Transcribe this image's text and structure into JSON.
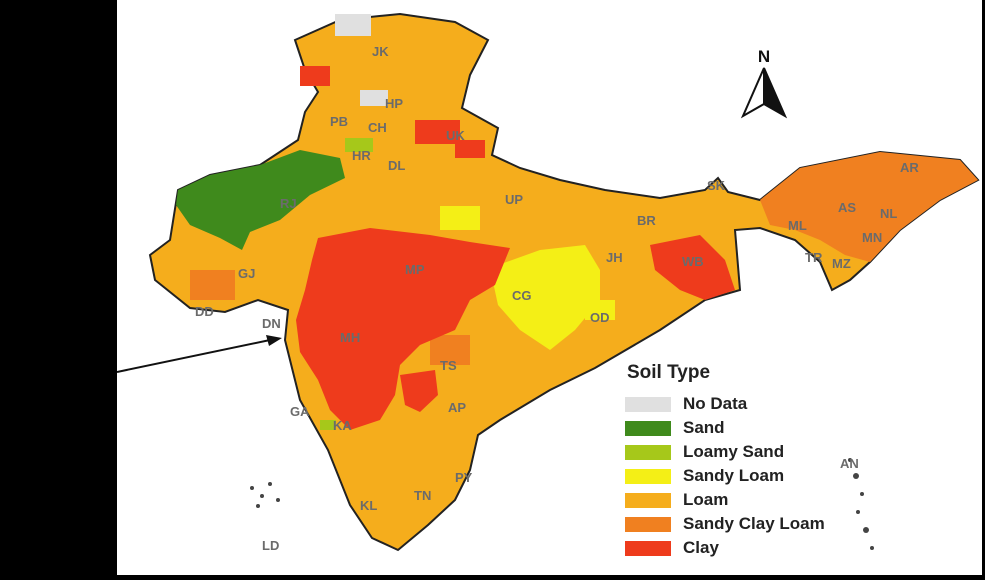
{
  "legend": {
    "title": "Soil Type",
    "items": [
      {
        "label": "No Data",
        "color": "#e0e0e0"
      },
      {
        "label": "Sand",
        "color": "#3f8a1c"
      },
      {
        "label": "Loamy Sand",
        "color": "#a6c81a"
      },
      {
        "label": "Sandy Loam",
        "color": "#f4ef16"
      },
      {
        "label": "Loam",
        "color": "#f5ad1c"
      },
      {
        "label": "Sandy Clay Loam",
        "color": "#f08020"
      },
      {
        "label": "Clay",
        "color": "#ee3b1c"
      }
    ]
  },
  "north": "N",
  "states": {
    "jk": "JK",
    "hp": "HP",
    "pb": "PB",
    "ch": "CH",
    "uk": "UK",
    "hr": "HR",
    "dl": "DL",
    "rj": "RJ",
    "up": "UP",
    "br": "BR",
    "sk": "SK",
    "ar": "AR",
    "as": "AS",
    "nl": "NL",
    "ml": "ML",
    "mn": "MN",
    "tr": "TR",
    "mz": "MZ",
    "gj": "GJ",
    "mp": "MP",
    "jh": "JH",
    "wb": "WB",
    "cg": "CG",
    "od": "OD",
    "dd": "DD",
    "dn": "DN",
    "mh": "MH",
    "ts": "TS",
    "ga": "GA",
    "ap": "AP",
    "ka": "KA",
    "an": "AN",
    "py": "PY",
    "tn": "TN",
    "kl": "KL",
    "ld": "LD"
  }
}
